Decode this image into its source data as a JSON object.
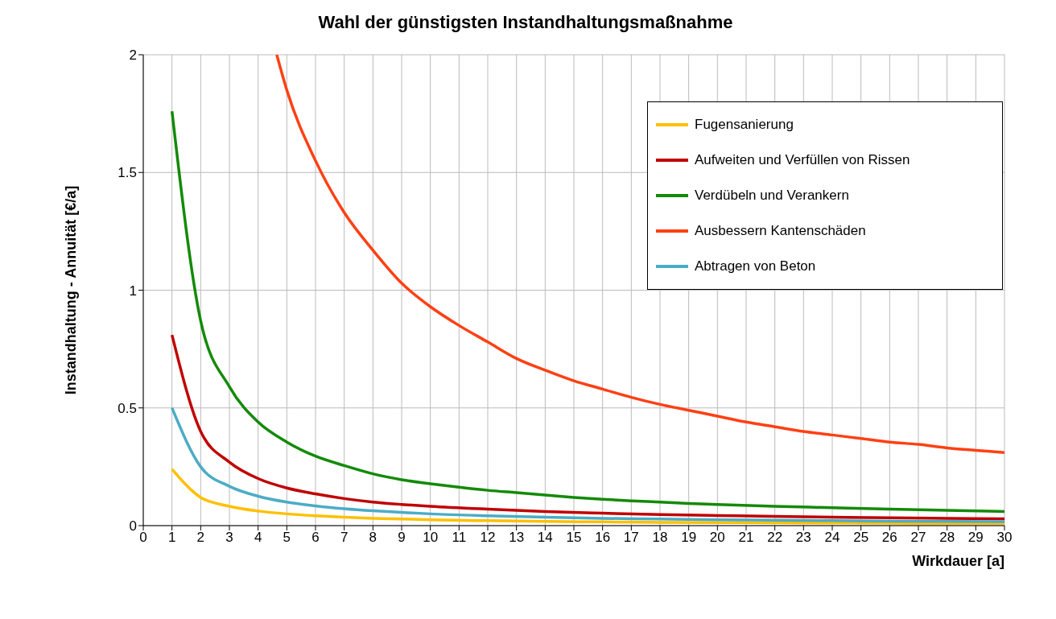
{
  "chart_data": {
    "type": "line",
    "title": "Wahl der günstigsten Instandhaltungsmaßnahme",
    "xlabel": "Wirkdauer [a]",
    "ylabel": "Instandhaltung - Annuität [€/a]",
    "xlim": [
      0,
      30
    ],
    "xticks": [
      0,
      1,
      2,
      3,
      4,
      5,
      6,
      7,
      8,
      9,
      10,
      11,
      12,
      13,
      14,
      15,
      16,
      17,
      18,
      19,
      20,
      21,
      22,
      23,
      24,
      25,
      26,
      27,
      28,
      29,
      30
    ],
    "ylim": [
      0,
      2
    ],
    "yticks": [
      0,
      0.5,
      1,
      1.5,
      2
    ],
    "grid": true,
    "legend": "top right",
    "marker": "none",
    "line_style": "solid",
    "series": [
      {
        "name": "Fugensanierung",
        "color": "#ffc000",
        "x": [
          1,
          2,
          3,
          4,
          5,
          6,
          7,
          8,
          9,
          10,
          12,
          14,
          16,
          18,
          20,
          22,
          24,
          26,
          28,
          30
        ],
        "values": [
          0.24,
          0.12,
          0.082,
          0.062,
          0.05,
          0.042,
          0.036,
          0.031,
          0.028,
          0.025,
          0.021,
          0.018,
          0.016,
          0.014,
          0.013,
          0.012,
          0.011,
          0.01,
          0.009,
          0.009
        ]
      },
      {
        "name": "Aufweiten und Verfüllen von Rissen",
        "color": "#c00000",
        "x": [
          1,
          2,
          3,
          4,
          5,
          6,
          7,
          8,
          9,
          10,
          12,
          14,
          16,
          18,
          20,
          22,
          24,
          26,
          28,
          30
        ],
        "values": [
          0.81,
          0.4,
          0.27,
          0.2,
          0.16,
          0.135,
          0.115,
          0.1,
          0.09,
          0.082,
          0.07,
          0.06,
          0.053,
          0.047,
          0.043,
          0.039,
          0.036,
          0.033,
          0.031,
          0.029
        ]
      },
      {
        "name": "Verdübeln und Verankern",
        "color": "#138a07",
        "x": [
          1,
          2,
          3,
          4,
          5,
          6,
          7,
          8,
          9,
          10,
          11,
          12,
          13,
          14,
          15,
          16,
          17,
          18,
          19,
          20,
          22,
          24,
          26,
          28,
          30
        ],
        "values": [
          1.76,
          0.87,
          0.59,
          0.44,
          0.355,
          0.295,
          0.255,
          0.22,
          0.195,
          0.178,
          0.163,
          0.15,
          0.14,
          0.13,
          0.12,
          0.112,
          0.105,
          0.1,
          0.094,
          0.09,
          0.082,
          0.076,
          0.07,
          0.065,
          0.06
        ]
      },
      {
        "name": "Ausbessern Kantenschäden",
        "color": "#ff4013",
        "x": [
          4.65,
          5,
          6,
          7,
          8,
          9,
          10,
          11,
          12,
          13,
          14,
          15,
          16,
          17,
          18,
          19,
          20,
          21,
          22,
          23,
          24,
          25,
          26,
          27,
          28,
          29,
          30
        ],
        "values": [
          2,
          1.85,
          1.55,
          1.33,
          1.17,
          1.03,
          0.93,
          0.85,
          0.78,
          0.71,
          0.66,
          0.615,
          0.58,
          0.545,
          0.515,
          0.49,
          0.465,
          0.44,
          0.42,
          0.4,
          0.385,
          0.37,
          0.355,
          0.345,
          0.33,
          0.32,
          0.31
        ]
      },
      {
        "name": "Abtragen von Beton",
        "color": "#4bacc6",
        "x": [
          1,
          2,
          3,
          4,
          5,
          6,
          7,
          8,
          9,
          10,
          12,
          14,
          16,
          18,
          20,
          22,
          24,
          26,
          28,
          30
        ],
        "values": [
          0.5,
          0.25,
          0.167,
          0.125,
          0.1,
          0.084,
          0.072,
          0.063,
          0.056,
          0.05,
          0.042,
          0.036,
          0.031,
          0.028,
          0.025,
          0.023,
          0.021,
          0.019,
          0.018,
          0.017
        ]
      }
    ]
  }
}
